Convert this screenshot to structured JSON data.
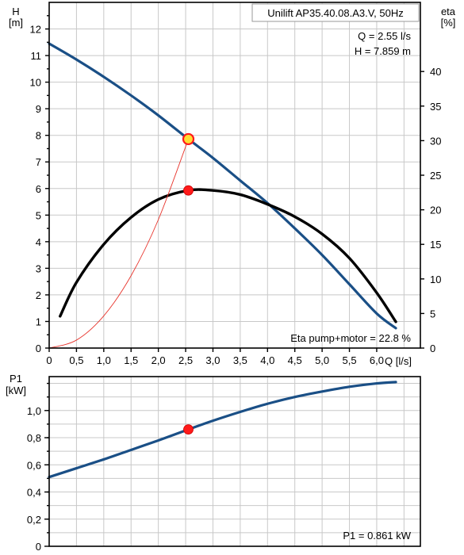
{
  "colors": {
    "head_curve": "#1a4f86",
    "power_curve": "#1a4f86",
    "eta_curve": "#000000",
    "system_curve": "#e8342c",
    "marker_fill": "#ff1a1a",
    "marker_duty_fill": "#ffdd33",
    "grid": "#c8c8c8"
  },
  "top_panel": {
    "pump_label": "Unilift AP35.40.08.A3.V, 50Hz",
    "q_readout": "Q = 2.55 l/s",
    "h_readout": "H = 7.859 m",
    "eta_readout": "Eta pump+motor = 22.8 %",
    "left_axis_title": "H",
    "left_axis_unit": "[m]",
    "right_axis_title": "eta",
    "right_axis_unit": "[%]",
    "x_axis_unit": "Q [l/s]"
  },
  "bottom_panel": {
    "y_axis_title": "P1",
    "y_axis_unit": "[kW]",
    "p1_readout": "P1 = 0.861 kW"
  },
  "chart_data": [
    {
      "type": "line",
      "title": "Unilift AP35.40.08.A3.V, 50Hz",
      "xlabel": "Q [l/s]",
      "ylabel": "H [m]",
      "y2label": "eta [%]",
      "xlim": [
        0,
        6.8
      ],
      "ylim": [
        0,
        13
      ],
      "y2lim": [
        0,
        50
      ],
      "x_ticks": [
        "0",
        "0,5",
        "1,0",
        "1,5",
        "2,0",
        "2,5",
        "3,0",
        "3,5",
        "4,0",
        "4,5",
        "5,0",
        "5,5",
        "6,0"
      ],
      "y_ticks": [
        "0",
        "1",
        "2",
        "3",
        "4",
        "5",
        "6",
        "7",
        "8",
        "9",
        "10",
        "11",
        "12"
      ],
      "y2_ticks": [
        "0",
        "5",
        "10",
        "15",
        "20",
        "25",
        "30",
        "35",
        "40"
      ],
      "grid": true,
      "series": [
        {
          "name": "H",
          "axis": "left",
          "x": [
            0,
            0.5,
            1.0,
            1.5,
            2.0,
            2.55,
            3.0,
            3.5,
            4.0,
            4.5,
            5.0,
            5.5,
            6.0,
            6.35
          ],
          "y": [
            11.45,
            10.85,
            10.2,
            9.5,
            8.75,
            7.859,
            7.15,
            6.3,
            5.45,
            4.5,
            3.5,
            2.4,
            1.3,
            0.75
          ]
        },
        {
          "name": "eta",
          "axis": "right",
          "x": [
            0.2,
            0.5,
            1.0,
            1.5,
            2.0,
            2.55,
            3.0,
            3.5,
            4.0,
            4.5,
            5.0,
            5.5,
            6.0,
            6.35
          ],
          "y": [
            4.6,
            9.5,
            15.0,
            18.9,
            21.5,
            22.8,
            22.8,
            22.2,
            20.8,
            19.0,
            16.5,
            13.0,
            8.0,
            3.8
          ]
        },
        {
          "name": "system",
          "axis": "left",
          "x": [
            0,
            0.5,
            1.0,
            1.5,
            2.0,
            2.55
          ],
          "y": [
            0,
            0.3,
            1.21,
            2.72,
            4.83,
            7.859
          ]
        }
      ],
      "markers": [
        {
          "series": "H",
          "x": 2.55,
          "y": 7.859,
          "style": "duty"
        },
        {
          "series": "eta",
          "x": 2.55,
          "y": 22.8,
          "style": "point"
        }
      ]
    },
    {
      "type": "line",
      "xlabel": "",
      "ylabel": "P1 [kW]",
      "xlim": [
        0,
        6.8
      ],
      "ylim": [
        0,
        1.25
      ],
      "y_ticks": [
        "0",
        "0,2",
        "0,4",
        "0,6",
        "0,8",
        "1,0"
      ],
      "grid": true,
      "series": [
        {
          "name": "P1",
          "x": [
            0,
            0.5,
            1.0,
            1.5,
            2.0,
            2.55,
            3.0,
            3.5,
            4.0,
            4.5,
            5.0,
            5.5,
            6.0,
            6.35
          ],
          "y": [
            0.51,
            0.575,
            0.64,
            0.71,
            0.78,
            0.861,
            0.925,
            0.99,
            1.05,
            1.1,
            1.14,
            1.175,
            1.2,
            1.21
          ]
        }
      ],
      "markers": [
        {
          "series": "P1",
          "x": 2.55,
          "y": 0.861,
          "style": "point"
        }
      ]
    }
  ]
}
